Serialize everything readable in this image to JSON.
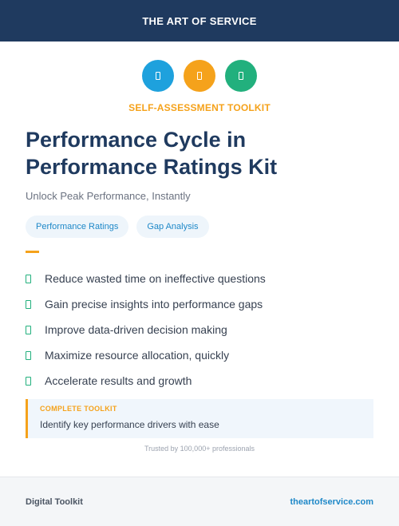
{
  "header": {
    "brand": "THE ART OF SERVICE"
  },
  "icons": [
    {
      "name": "blue-badge-icon",
      "color": "#1ea1dd"
    },
    {
      "name": "orange-badge-icon",
      "color": "#f5a21b"
    },
    {
      "name": "green-badge-icon",
      "color": "#22b07d"
    }
  ],
  "hero": {
    "eyebrow": "SELF-ASSESSMENT TOOLKIT",
    "title_line1": "Performance Cycle in",
    "title_line2": "Performance Ratings Kit",
    "subtitle": "Unlock Peak Performance, Instantly"
  },
  "tags": [
    "Performance Ratings",
    "Gap Analysis"
  ],
  "benefits": [
    "Reduce wasted time on ineffective questions",
    "Gain precise insights into performance gaps",
    "Improve data-driven decision making",
    "Maximize resource allocation, quickly",
    "Accelerate results and growth"
  ],
  "callout": {
    "label": "COMPLETE TOOLKIT",
    "text": "Identify key performance drivers with ease"
  },
  "trusted": "Trusted by 100,000+ professionals",
  "footer": {
    "left": "Digital Toolkit",
    "right": "theartofservice.com"
  },
  "colors": {
    "navy": "#1f3a5f",
    "orange": "#f5a21b",
    "blue": "#1e88c8",
    "green": "#22b07d"
  }
}
